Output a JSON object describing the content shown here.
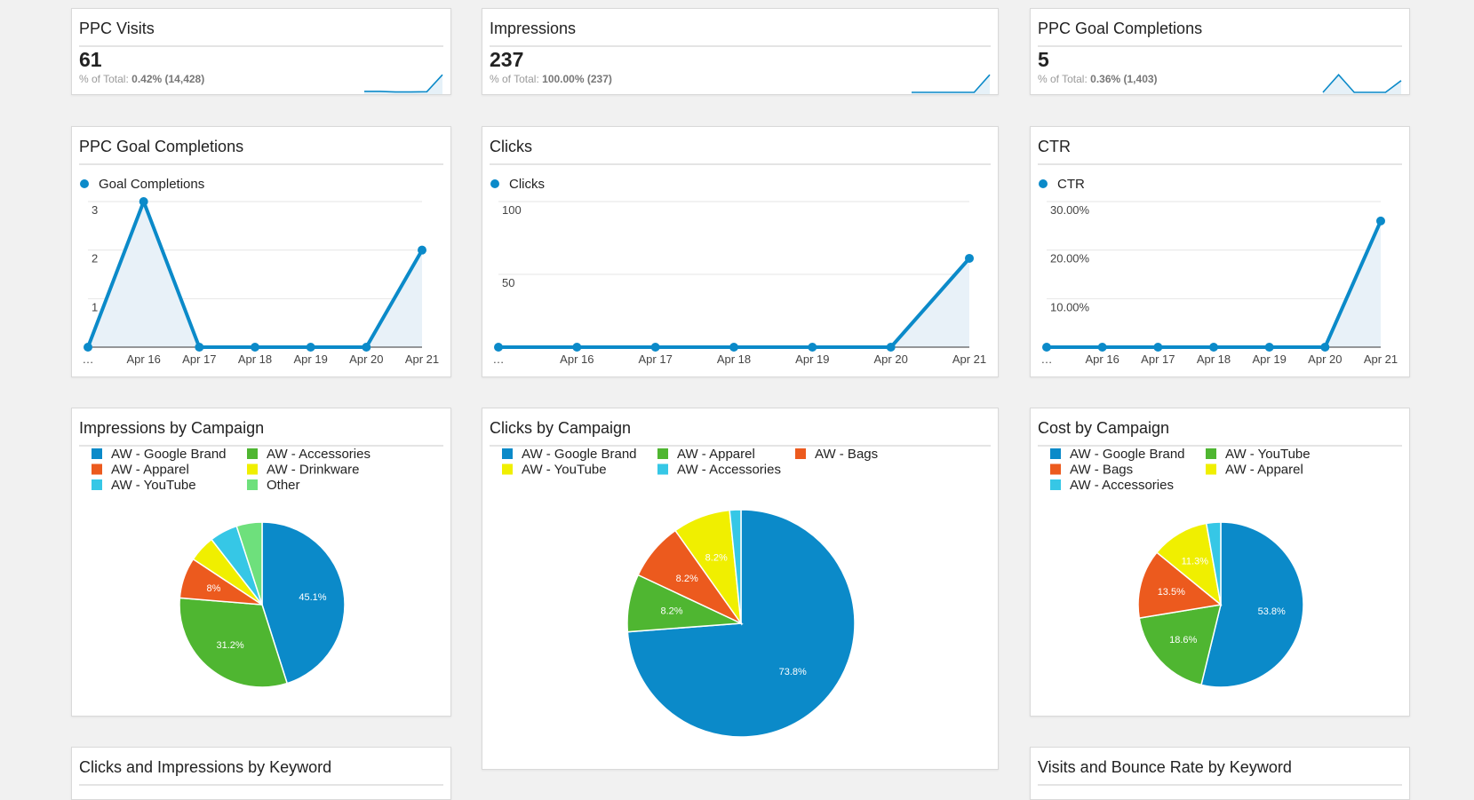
{
  "colors": {
    "blue": "#0b8ac9",
    "green": "#4fb631",
    "orange": "#ec5a1e",
    "yellow": "#f0ef00",
    "cyan": "#36c7e6",
    "lightgreen": "#6ee07c"
  },
  "kpis": [
    {
      "title": "PPC Visits",
      "value": "61",
      "sub_prefix": "% of Total:",
      "sub_value": "0.42% (14,428)",
      "spark": [
        0.05,
        0.05,
        0.02,
        0.02,
        0.03,
        0.9
      ]
    },
    {
      "title": "Impressions",
      "value": "237",
      "sub_prefix": "% of Total:",
      "sub_value": "100.00% (237)",
      "spark": [
        0,
        0,
        0,
        0,
        0,
        0.9
      ]
    },
    {
      "title": "PPC Goal Completions",
      "value": "5",
      "sub_prefix": "% of Total:",
      "sub_value": "0.36% (1,403)",
      "spark": [
        0,
        0.9,
        0,
        0,
        0,
        0.6
      ]
    }
  ],
  "line_charts": [
    {
      "title": "PPC Goal Completions",
      "legend": "Goal Completions",
      "chart_data": {
        "type": "area",
        "x": [
          "…",
          "Apr 16",
          "Apr 17",
          "Apr 18",
          "Apr 19",
          "Apr 20",
          "Apr 21"
        ],
        "values": [
          0,
          3,
          0,
          0,
          0,
          0,
          2
        ],
        "yticks": [
          "1",
          "2",
          "3"
        ],
        "ytick_values": [
          1,
          2,
          3
        ],
        "ylim": [
          0,
          3
        ]
      }
    },
    {
      "title": "Clicks",
      "legend": "Clicks",
      "chart_data": {
        "type": "area",
        "x": [
          "…",
          "Apr 16",
          "Apr 17",
          "Apr 18",
          "Apr 19",
          "Apr 20",
          "Apr 21"
        ],
        "values": [
          0,
          0,
          0,
          0,
          0,
          0,
          61
        ],
        "yticks": [
          "50",
          "100"
        ],
        "ytick_values": [
          50,
          100
        ],
        "ylim": [
          0,
          100
        ]
      }
    },
    {
      "title": "CTR",
      "legend": "CTR",
      "chart_data": {
        "type": "area",
        "x": [
          "…",
          "Apr 16",
          "Apr 17",
          "Apr 18",
          "Apr 19",
          "Apr 20",
          "Apr 21"
        ],
        "values": [
          0,
          0,
          0,
          0,
          0,
          0,
          26
        ],
        "yticks": [
          "10.00%",
          "20.00%",
          "30.00%"
        ],
        "ytick_values": [
          10,
          20,
          30
        ],
        "ylim": [
          0,
          30
        ]
      }
    }
  ],
  "pie_charts": [
    {
      "title": "Impressions by Campaign",
      "legend_cols": 2,
      "chart_data": {
        "type": "pie",
        "slices": [
          {
            "name": "AW - Google Brand",
            "value": 45.1,
            "label": "45.1%",
            "color": "#0b8ac9"
          },
          {
            "name": "AW - Accessories",
            "value": 31.2,
            "label": "31.2%",
            "color": "#4fb631"
          },
          {
            "name": "AW - Apparel",
            "value": 8,
            "label": "8%",
            "color": "#ec5a1e"
          },
          {
            "name": "AW - Drinkware",
            "value": 5.2,
            "label": "",
            "color": "#f0ef00"
          },
          {
            "name": "AW - YouTube",
            "value": 5.5,
            "label": "",
            "color": "#36c7e6"
          },
          {
            "name": "Other",
            "value": 5.0,
            "label": "",
            "color": "#6ee07c"
          }
        ]
      }
    },
    {
      "title": "Clicks by Campaign",
      "legend_cols": 3,
      "chart_data": {
        "type": "pie",
        "slices": [
          {
            "name": "AW - Google Brand",
            "value": 73.8,
            "label": "73.8%",
            "color": "#0b8ac9"
          },
          {
            "name": "AW - Apparel",
            "value": 8.2,
            "label": "8.2%",
            "color": "#4fb631"
          },
          {
            "name": "AW - Bags",
            "value": 8.2,
            "label": "8.2%",
            "color": "#ec5a1e"
          },
          {
            "name": "AW - YouTube",
            "value": 8.2,
            "label": "8.2%",
            "color": "#f0ef00"
          },
          {
            "name": "AW - Accessories",
            "value": 1.6,
            "label": "",
            "color": "#36c7e6"
          }
        ]
      }
    },
    {
      "title": "Cost by Campaign",
      "legend_cols": 2,
      "chart_data": {
        "type": "pie",
        "slices": [
          {
            "name": "AW - Google Brand",
            "value": 53.8,
            "label": "53.8%",
            "color": "#0b8ac9"
          },
          {
            "name": "AW - YouTube",
            "value": 18.6,
            "label": "18.6%",
            "color": "#4fb631"
          },
          {
            "name": "AW - Bags",
            "value": 13.5,
            "label": "13.5%",
            "color": "#ec5a1e"
          },
          {
            "name": "AW - Apparel",
            "value": 11.3,
            "label": "11.3%",
            "color": "#f0ef00"
          },
          {
            "name": "AW - Accessories",
            "value": 2.8,
            "label": "",
            "color": "#36c7e6"
          }
        ]
      }
    }
  ],
  "bottom_titles": {
    "left": "Clicks and Impressions by Keyword",
    "right": "Visits and Bounce Rate by Keyword"
  }
}
